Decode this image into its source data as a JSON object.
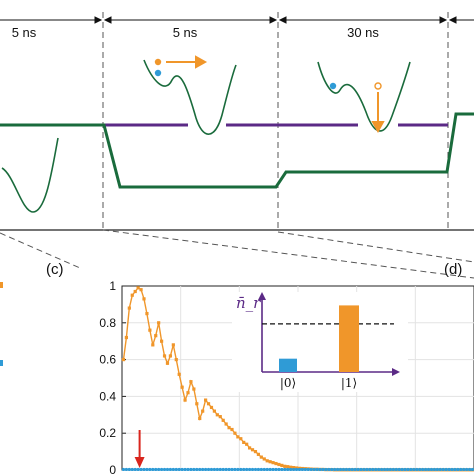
{
  "top_panel": {
    "durations": [
      {
        "text": "5 ns"
      },
      {
        "text": "5 ns"
      },
      {
        "text": "30 ns"
      }
    ]
  },
  "panel_labels": {
    "c": "(c)",
    "d": "(d)"
  },
  "colors": {
    "green": "#1a6b3c",
    "purple": "#5b2a86",
    "orange": "#f0962a",
    "blue": "#2f9bd6",
    "red": "#d9251d",
    "gray": "#888888",
    "dashed": "#555555"
  },
  "chart_data": {
    "type": "line",
    "ylim": [
      0,
      1
    ],
    "xlim": [
      0,
      12
    ],
    "y_ticks": [
      0,
      0.2,
      0.4,
      0.6,
      0.8,
      1
    ],
    "y_tick_labels": [
      "0",
      "0.2",
      "0.4",
      "0.6",
      "0.8",
      "1"
    ],
    "series": [
      {
        "color": "orange",
        "marker": "square",
        "x": [
          0.05,
          0.15,
          0.25,
          0.35,
          0.45,
          0.55,
          0.65,
          0.75,
          0.85,
          0.95,
          1.05,
          1.15,
          1.25,
          1.35,
          1.45,
          1.55,
          1.65,
          1.75,
          1.85,
          1.95,
          2.05,
          2.15,
          2.25,
          2.35,
          2.45,
          2.55,
          2.65,
          2.75,
          2.85,
          2.95,
          3.05,
          3.15,
          3.25,
          3.35,
          3.45,
          3.55,
          3.65,
          3.75,
          3.85,
          3.95,
          4.05,
          4.15,
          4.25,
          4.35,
          4.45,
          4.55,
          4.65,
          4.75,
          4.85,
          4.95,
          5.05,
          5.15,
          5.25,
          5.35,
          5.45,
          5.55,
          5.65,
          5.75,
          5.85,
          5.95,
          6.05,
          6.15,
          6.25,
          6.35,
          6.45,
          6.55,
          6.65,
          6.75,
          6.85,
          6.95,
          7.05,
          7.15,
          7.25,
          7.35,
          7.45,
          7.55,
          7.65,
          7.75,
          7.85,
          7.95,
          8.05,
          8.15,
          8.25,
          8.35,
          8.45,
          8.55,
          8.65,
          8.75,
          8.85,
          8.95,
          9.05,
          9.15,
          9.25,
          9.35,
          9.45,
          9.55,
          9.65,
          9.75,
          9.85,
          9.95,
          10.05,
          10.15,
          10.25,
          10.35,
          10.45,
          10.55,
          10.65,
          10.75,
          10.85,
          10.95,
          11.05,
          11.15,
          11.25,
          11.35,
          11.45,
          11.55,
          11.65,
          11.75,
          11.85,
          11.95
        ],
        "y": [
          0.6,
          0.72,
          0.88,
          0.95,
          0.97,
          0.99,
          0.98,
          0.93,
          0.85,
          0.76,
          0.68,
          0.73,
          0.8,
          0.7,
          0.62,
          0.58,
          0.62,
          0.68,
          0.6,
          0.52,
          0.45,
          0.38,
          0.42,
          0.48,
          0.44,
          0.36,
          0.28,
          0.32,
          0.38,
          0.36,
          0.34,
          0.32,
          0.3,
          0.29,
          0.27,
          0.25,
          0.23,
          0.22,
          0.2,
          0.18,
          0.17,
          0.15,
          0.14,
          0.12,
          0.11,
          0.1,
          0.085,
          0.07,
          0.06,
          0.05,
          0.045,
          0.04,
          0.035,
          0.03,
          0.025,
          0.02,
          0.018,
          0.015,
          0.013,
          0.011,
          0.009,
          0.008,
          0.007,
          0.006,
          0.005,
          0.004,
          0.004,
          0.003,
          0.003,
          0.002,
          0.002,
          0.002,
          0.001,
          0.001,
          0.001,
          0.001,
          0.001,
          0.001,
          0.001,
          0.001,
          0.001,
          0.001,
          0.001,
          0.001,
          0.001,
          0.001,
          0.001,
          0.001,
          0.001,
          0.001,
          0.001,
          0.001,
          0.001,
          0.001,
          0.001,
          0.001,
          0.001,
          0.001,
          0.001,
          0.001,
          0.001,
          0.001,
          0.001,
          0.001,
          0.001,
          0.001,
          0.001,
          0.001,
          0.001,
          0.001,
          0.001,
          0.001,
          0.001,
          0.001,
          0.001,
          0.001,
          0.001,
          0.001,
          0.001,
          0.001
        ]
      },
      {
        "color": "blue",
        "marker": "circle",
        "x_range": [
          0.05,
          11.95
        ],
        "y_const": 0.003
      }
    ],
    "arrow_x": 0.6,
    "inset": {
      "ylabel": "n̄_r",
      "categories": [
        "|0⟩",
        "|1⟩"
      ],
      "values": [
        0.18,
        0.9
      ],
      "bar_colors": [
        "blue",
        "orange"
      ],
      "reference_level": 0.65
    }
  }
}
